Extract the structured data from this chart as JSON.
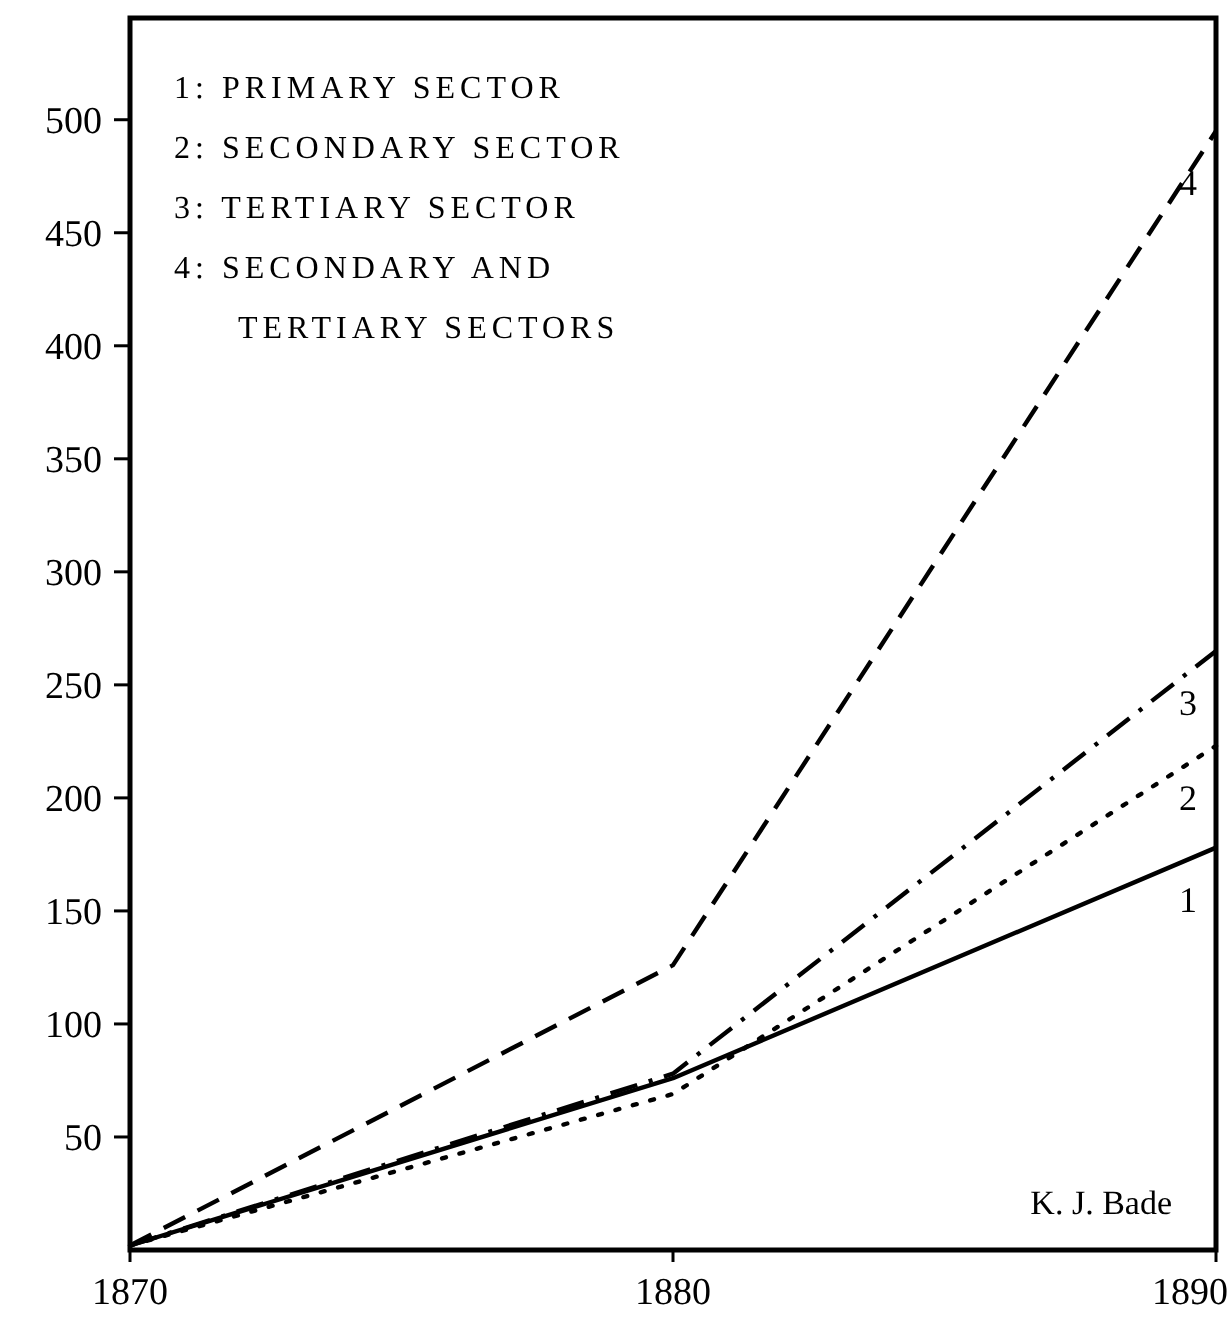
{
  "chart_data": {
    "type": "line",
    "x": [
      1870,
      1880,
      1890
    ],
    "xlim": [
      1870,
      1890
    ],
    "xticks": [
      1870,
      1880,
      1890
    ],
    "ylim": [
      0,
      545
    ],
    "yticks": [
      50,
      100,
      150,
      200,
      250,
      300,
      350,
      400,
      450,
      500
    ],
    "marker": "none",
    "grid": false,
    "series": [
      {
        "name": "1",
        "color": "#000000",
        "values": [
          2,
          76,
          178
        ],
        "line_style": "solid"
      },
      {
        "name": "2",
        "color": "#000000",
        "values": [
          2,
          69,
          223
        ],
        "line_style": "dotted"
      },
      {
        "name": "3",
        "color": "#000000",
        "values": [
          2,
          78,
          265
        ],
        "line_style": "dashdot"
      },
      {
        "name": "4",
        "color": "#000000",
        "values": [
          2,
          126,
          495
        ],
        "line_style": "dashed"
      }
    ],
    "annotations": [
      "1: PRIMARY SECTOR",
      "2: SECONDARY SECTOR",
      "3: TERTIARY SECTOR",
      "4: SECONDARY AND TERTIARY SECTORS",
      "K. J. Bade"
    ]
  }
}
